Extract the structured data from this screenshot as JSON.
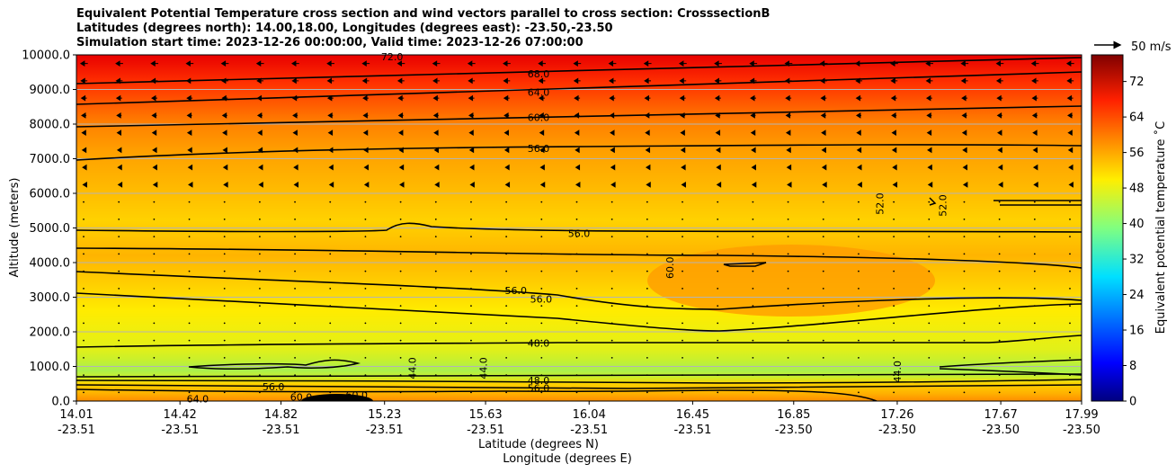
{
  "chart_data": {
    "type": "contourf",
    "title_lines": [
      "Equivalent Potential Temperature cross section and wind vectors parallel to cross section: CrosssectionB",
      "Latitudes (degrees north): 14.00,18.00, Longitudes (degrees east): -23.50,-23.50",
      "Simulation start time: 2023-12-26 00:00:00, Valid time: 2023-12-26 07:00:00"
    ],
    "ylabel": "Altitude (meters)",
    "xlabel_lat": "Latitude (degrees N)",
    "xlabel_lon": "Longitude (degrees E)",
    "ylim": [
      0,
      10000
    ],
    "yticks": [
      "0.0",
      "1000.0",
      "2000.0",
      "3000.0",
      "4000.0",
      "5000.0",
      "6000.0",
      "7000.0",
      "8000.0",
      "9000.0",
      "10000.0"
    ],
    "xlim": [
      14.01,
      17.99
    ],
    "xtick_lat": [
      "14.01",
      "14.42",
      "14.82",
      "15.23",
      "15.63",
      "16.04",
      "16.45",
      "16.85",
      "17.26",
      "17.67",
      "17.99"
    ],
    "xtick_lon": [
      "-23.51",
      "-23.51",
      "-23.51",
      "-23.51",
      "-23.51",
      "-23.51",
      "-23.51",
      "-23.50",
      "-23.50",
      "-23.50",
      "-23.50"
    ],
    "colorbar": {
      "label": "Equivalent potential temperature ˚C",
      "ticks": [
        "0",
        "8",
        "16",
        "24",
        "32",
        "40",
        "48",
        "56",
        "64",
        "72"
      ],
      "range": [
        0,
        78
      ]
    },
    "quiver_key": {
      "label": "50 m/s",
      "speed": 50
    },
    "contour_labels": [
      {
        "text": "72.0",
        "lat": 15.26,
        "alt": 9950
      },
      {
        "text": "68.0",
        "lat": 15.84,
        "alt": 9450
      },
      {
        "text": "64.0",
        "lat": 15.84,
        "alt": 8920
      },
      {
        "text": "60.0",
        "lat": 15.84,
        "alt": 8200
      },
      {
        "text": "56.0",
        "lat": 15.84,
        "alt": 7300
      },
      {
        "text": "56.0",
        "lat": 16.0,
        "alt": 4850
      },
      {
        "text": "60.0",
        "lat": 16.36,
        "alt": 3850
      },
      {
        "text": "52.0",
        "lat": 17.19,
        "alt": 5700
      },
      {
        "text": "52.0",
        "lat": 17.44,
        "alt": 5650
      },
      {
        "text": "56.0",
        "lat": 15.75,
        "alt": 3200
      },
      {
        "text": "56.0",
        "lat": 15.85,
        "alt": 2950
      },
      {
        "text": "48.0",
        "lat": 15.84,
        "alt": 1680
      },
      {
        "text": "44.0",
        "lat": 15.34,
        "alt": 950
      },
      {
        "text": "44.0",
        "lat": 15.62,
        "alt": 950
      },
      {
        "text": "44.0",
        "lat": 17.26,
        "alt": 850
      },
      {
        "text": "48.0",
        "lat": 15.84,
        "alt": 600
      },
      {
        "text": "56.0",
        "lat": 15.84,
        "alt": 380
      },
      {
        "text": "56.0",
        "lat": 14.79,
        "alt": 420
      },
      {
        "text": "60.0",
        "lat": 14.9,
        "alt": 120
      },
      {
        "text": "60.0",
        "lat": 15.12,
        "alt": 180
      },
      {
        "text": "64.0",
        "lat": 14.49,
        "alt": 60
      }
    ]
  }
}
